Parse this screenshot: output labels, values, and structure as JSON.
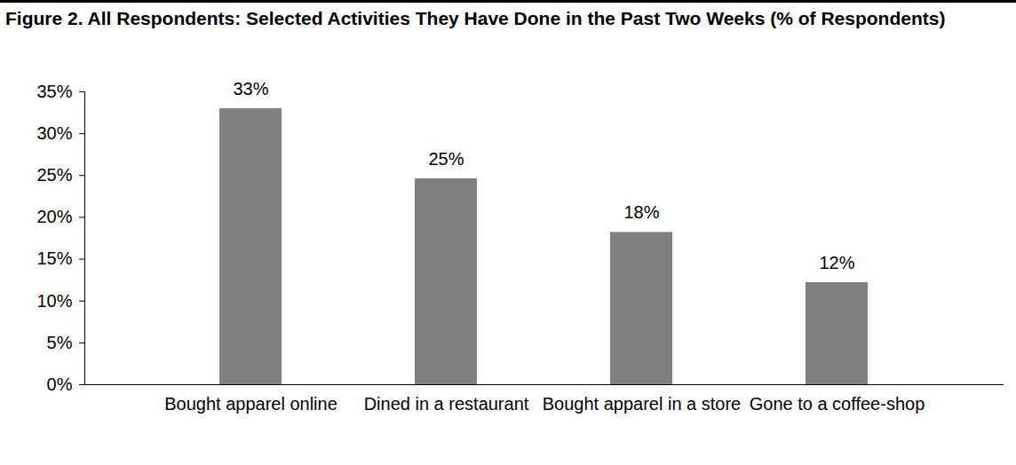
{
  "chart_data": {
    "type": "bar",
    "title": "Figure 2. All Respondents: Selected Activities They Have Done in the Past Two Weeks (% of Respondents)",
    "categories": [
      "Bought apparel online",
      "Dined in a restaurant",
      "Bought apparel in a store",
      "Gone to a coffee-shop"
    ],
    "values": [
      33,
      24.6,
      18.2,
      12.2
    ],
    "value_labels": [
      "33%",
      "25%",
      "18%",
      "12%"
    ],
    "color": "#808080",
    "ylim": [
      0,
      35
    ],
    "yticks": [
      {
        "value": 0,
        "label": "0%"
      },
      {
        "value": 5,
        "label": "5%"
      },
      {
        "value": 10,
        "label": "10%"
      },
      {
        "value": 15,
        "label": "15%"
      },
      {
        "value": 20,
        "label": "20%"
      },
      {
        "value": 25,
        "label": "25%"
      },
      {
        "value": 30,
        "label": "30%"
      },
      {
        "value": 35,
        "label": "35%"
      }
    ],
    "grid": false,
    "data_labels": true
  }
}
